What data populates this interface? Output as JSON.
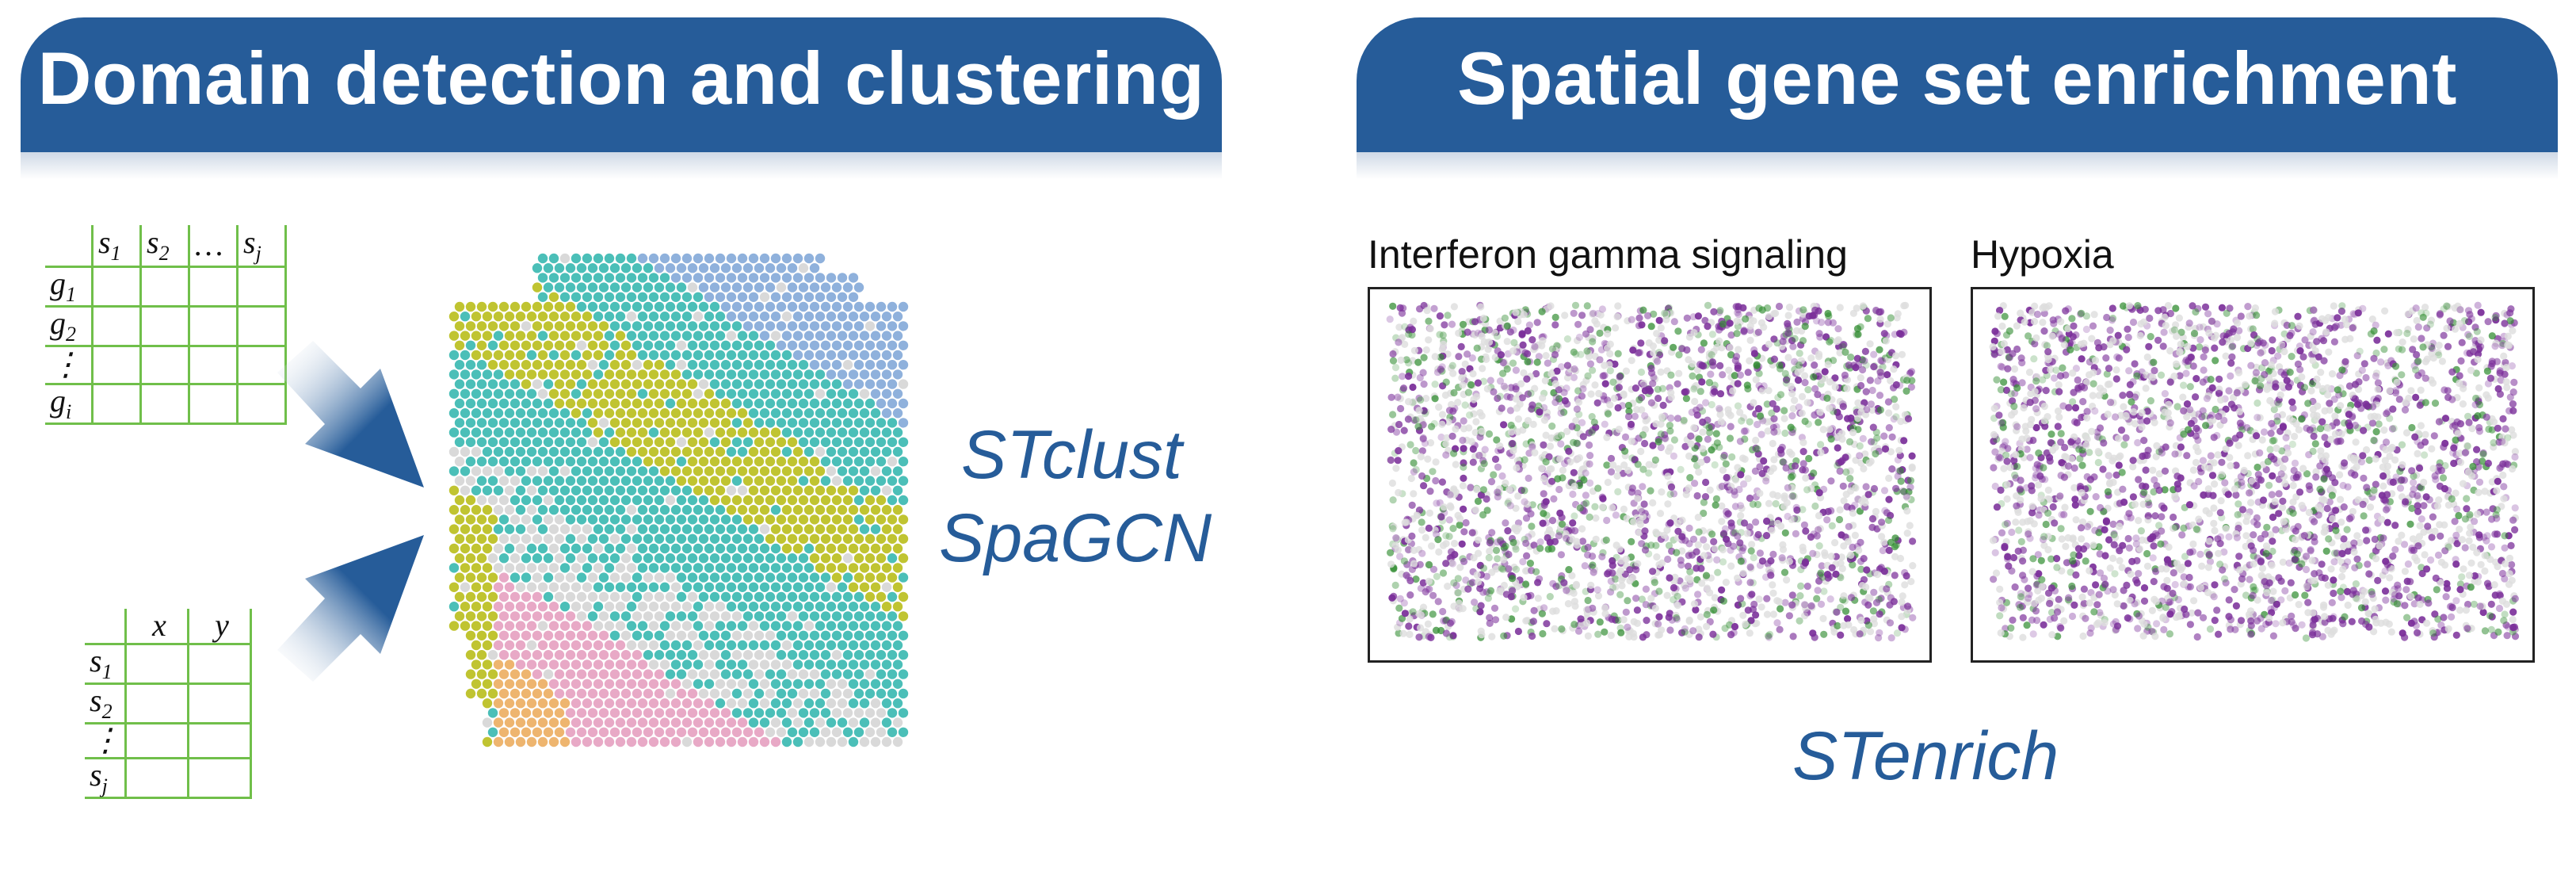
{
  "left_section": {
    "title": "Domain detection and clustering",
    "expression_matrix": {
      "columns": [
        "s1",
        "s2",
        "…",
        "sj"
      ],
      "rows": [
        "g1",
        "g2",
        "⋮",
        "gi"
      ]
    },
    "coordinate_matrix": {
      "columns": [
        "x",
        "y"
      ],
      "rows": [
        "s1",
        "s2",
        "⋮",
        "sj"
      ]
    },
    "tools": [
      "STclust",
      "SpaGCN"
    ],
    "domain_colors": [
      "#c0c431",
      "#4bbfb8",
      "#8fb1dc",
      "#e8a9c6",
      "#eeb56f",
      "#d9d9d9"
    ]
  },
  "right_section": {
    "title": "Spatial gene set enrichment",
    "panels": [
      {
        "label": "Interferon gamma signaling"
      },
      {
        "label": "Hypoxia"
      }
    ],
    "tool": "STenrich",
    "score_colors": {
      "high": "#7b2f9a",
      "low": "#2e8b2e",
      "neutral": "#dddddd"
    }
  }
}
